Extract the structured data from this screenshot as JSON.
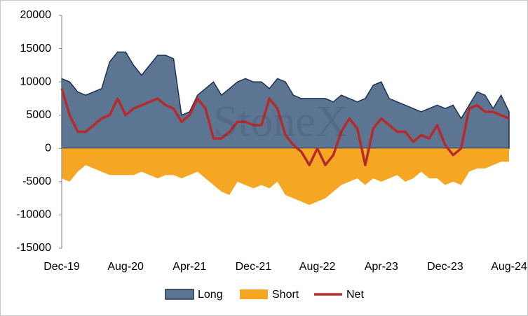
{
  "chart_data": {
    "type": "area",
    "watermark": "StoneX",
    "categories": [
      "Dec-19",
      null,
      null,
      null,
      null,
      null,
      null,
      null,
      "Aug-20",
      null,
      null,
      null,
      null,
      null,
      null,
      null,
      "Apr-21",
      null,
      null,
      null,
      null,
      null,
      null,
      null,
      "Dec-21",
      null,
      null,
      null,
      null,
      null,
      null,
      null,
      "Aug-22",
      null,
      null,
      null,
      null,
      null,
      null,
      null,
      "Apr-23",
      null,
      null,
      null,
      null,
      null,
      null,
      null,
      "Dec-23",
      null,
      null,
      null,
      null,
      null,
      null,
      null,
      "Aug-24"
    ],
    "series": [
      {
        "name": "Long",
        "kind": "area",
        "color": "#5b7593",
        "values": [
          10500,
          10000,
          8500,
          8000,
          8500,
          9000,
          13000,
          14500,
          14500,
          12500,
          11000,
          12500,
          14000,
          14000,
          13500,
          5000,
          5500,
          8000,
          9000,
          10000,
          8000,
          9000,
          10000,
          10500,
          10000,
          10000,
          9000,
          10500,
          10000,
          8000,
          7500,
          7500,
          7500,
          7500,
          7000,
          8000,
          7500,
          7000,
          7500,
          9500,
          10000,
          7500,
          7000,
          6500,
          6000,
          5500,
          6000,
          6500,
          6000,
          6500,
          4500,
          6500,
          8500,
          8000,
          6000,
          8000,
          5500
        ]
      },
      {
        "name": "Short",
        "kind": "area",
        "color": "#f5a623",
        "values": [
          -4500,
          -5000,
          -3500,
          -2500,
          -3000,
          -3500,
          -4000,
          -4000,
          -4000,
          -4000,
          -3500,
          -4000,
          -4500,
          -4000,
          -4000,
          -4500,
          -4000,
          -3500,
          -4500,
          -5500,
          -6500,
          -7000,
          -5000,
          -5500,
          -6000,
          -5500,
          -6000,
          -5000,
          -7000,
          -7500,
          -8000,
          -8500,
          -8000,
          -7500,
          -6500,
          -5500,
          -5000,
          -4500,
          -5500,
          -4500,
          -5000,
          -4500,
          -4000,
          -5000,
          -4500,
          -3500,
          -4500,
          -4500,
          -5500,
          -5000,
          -5500,
          -3500,
          -3000,
          -3000,
          -2500,
          -2000,
          -2000
        ]
      },
      {
        "name": "Net",
        "kind": "line",
        "color": "#b52b2b",
        "values": [
          9000,
          5000,
          2500,
          2500,
          3500,
          4500,
          5000,
          7500,
          5000,
          6000,
          6500,
          7000,
          7500,
          6500,
          6000,
          4000,
          5000,
          7500,
          6000,
          1500,
          1500,
          2500,
          4000,
          4000,
          3500,
          3500,
          7500,
          6000,
          2000,
          500,
          -500,
          -2500,
          0,
          -2500,
          -1000,
          2500,
          4500,
          3000,
          -2500,
          3000,
          4500,
          3500,
          2500,
          2500,
          1000,
          2000,
          1500,
          3500,
          500,
          -1000,
          0,
          6000,
          6500,
          5500,
          5500,
          5000,
          4500
        ]
      }
    ],
    "ylim": [
      -15000,
      20000
    ],
    "yticks": [
      -15000,
      -10000,
      -5000,
      0,
      5000,
      10000,
      15000,
      20000
    ]
  }
}
